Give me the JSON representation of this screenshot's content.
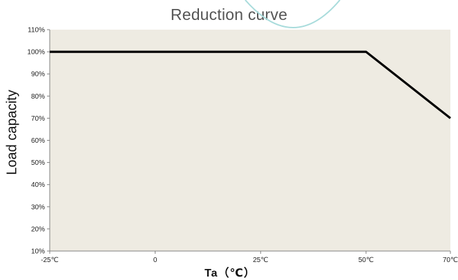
{
  "chart_data": {
    "type": "line",
    "title": "Reduction curve",
    "xlabel": "Ta（℃）",
    "ylabel": "Load capacity",
    "x_ticks": [
      {
        "value": -25,
        "label": "-25℃"
      },
      {
        "value": 0,
        "label": "0"
      },
      {
        "value": 25,
        "label": "25℃"
      },
      {
        "value": 50,
        "label": "50℃"
      },
      {
        "value": 70,
        "label": "70℃"
      }
    ],
    "y_ticks": [
      {
        "value": 10,
        "label": "10%"
      },
      {
        "value": 20,
        "label": "20%"
      },
      {
        "value": 30,
        "label": "30%"
      },
      {
        "value": 40,
        "label": "40%"
      },
      {
        "value": 50,
        "label": "50%"
      },
      {
        "value": 60,
        "label": "60%"
      },
      {
        "value": 70,
        "label": "70%"
      },
      {
        "value": 80,
        "label": "80%"
      },
      {
        "value": 90,
        "label": "90%"
      },
      {
        "value": 100,
        "label": "100%"
      },
      {
        "value": 110,
        "label": "110%"
      }
    ],
    "xlim": [
      -25,
      70
    ],
    "ylim": [
      10,
      110
    ],
    "grid": false,
    "legend": "none",
    "series": [
      {
        "x": [
          -25,
          0,
          25,
          50,
          70
        ],
        "y": [
          100,
          100,
          100,
          100,
          70
        ],
        "color": "#000000"
      }
    ],
    "colors": {
      "plot_background": "#eeebe2",
      "line": "#000000",
      "decor_arc": "#a9dcdc"
    }
  }
}
